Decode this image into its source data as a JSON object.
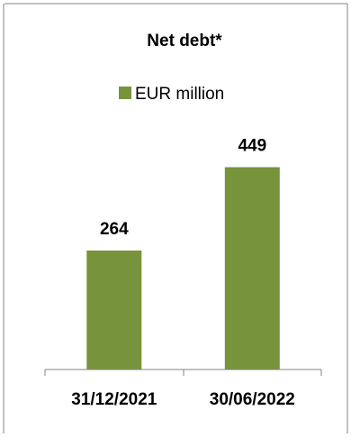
{
  "chart_data": {
    "type": "bar",
    "title": "Net debt*",
    "categories": [
      "31/12/2021",
      "30/06/2022"
    ],
    "series": [
      {
        "name": "EUR million",
        "values": [
          264,
          449
        ],
        "color": "#77933C"
      }
    ],
    "data_labels": [
      "264",
      "449"
    ],
    "xlabel": "",
    "ylabel": "",
    "ylim": [
      0,
      600
    ],
    "grid": false,
    "legend": "top-center"
  }
}
